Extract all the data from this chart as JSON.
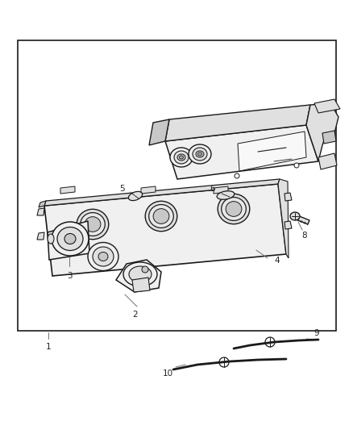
{
  "background_color": "#ffffff",
  "border_color": "#1a1a1a",
  "outline_color": "#1a1a1a",
  "fill_light": "#f0f0f0",
  "fill_mid": "#e0e0e0",
  "fill_dark": "#c8c8c8",
  "label_color": "#555555",
  "fig_width": 4.39,
  "fig_height": 5.33,
  "dpi": 100
}
